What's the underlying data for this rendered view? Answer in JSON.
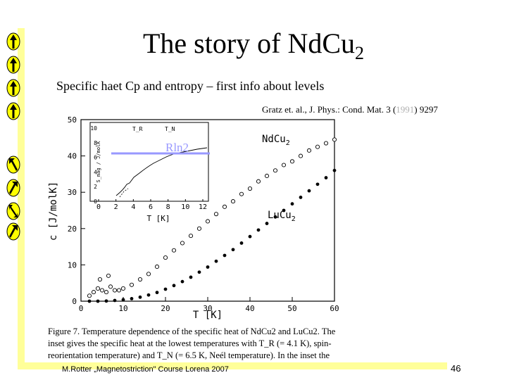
{
  "slide": {
    "title_main": "The story of NdCu",
    "title_sub": "2",
    "subtitle": "Specific haet Cp  and entropy – first info about levels",
    "reference_pre": "Gratz et. al., J. Phys.: Cond. Mat. 3 (",
    "reference_year": "1991",
    "reference_post": ") 9297",
    "footer": "M.Rotter „Magnetostriction\" Course Lorena 2007",
    "page_number": "46",
    "accent_color": "#ffff99",
    "arrow_color": "#ffff00"
  },
  "figure": {
    "y_axis_label": "c [J/molK]",
    "x_axis_label": "T [K]",
    "y_ticks": [
      "0",
      "10",
      "20",
      "30",
      "40",
      "50"
    ],
    "x_ticks": [
      "0",
      "10",
      "20",
      "30",
      "40",
      "50",
      "60"
    ],
    "label_ndcu": "NdCu",
    "label_lucu": "LuCu",
    "label_sub": "2",
    "rln2": "Rln2",
    "inset_x_label": "T [K]",
    "inset_x_ticks": [
      "0",
      "2",
      "4",
      "6",
      "8",
      "10",
      "12"
    ],
    "inset_y_ticks": [
      "0",
      "2",
      "4",
      "6",
      "8",
      "10"
    ],
    "inset_y_label": "S_mag / J/molK",
    "inset_tr": "T_R",
    "inset_tn": "T_N",
    "caption_line1": "Figure 7. Temperature dependence of the specific heat of NdCu2 and LuCu2. The",
    "caption_line2": "inset gives the specific heat at the lowest temperatures with T_R (= 4.1 K), spin-",
    "caption_line3": "reorientation temperature) and T_N (= 6.5 K, Neél temperature). In the inset the"
  },
  "chart_data": {
    "type": "scatter",
    "xlabel": "T [K]",
    "ylabel": "c [J/molK]",
    "xlim": [
      0,
      60
    ],
    "ylim": [
      0,
      50
    ],
    "series": [
      {
        "name": "NdCu2",
        "x": [
          2,
          3,
          4,
          4.5,
          5,
          6,
          6.5,
          7,
          8,
          9,
          10,
          12,
          14,
          16,
          18,
          20,
          22,
          24,
          26,
          28,
          30,
          32,
          34,
          36,
          38,
          40,
          42,
          44,
          46,
          48,
          50,
          52,
          54,
          56,
          58,
          60
        ],
        "y": [
          1.5,
          2.5,
          3.5,
          6,
          3,
          2.5,
          7,
          4,
          3,
          3,
          3.5,
          4.5,
          6,
          7.5,
          9.5,
          12,
          14,
          16,
          18,
          20,
          22,
          24,
          26,
          27.5,
          29.5,
          31,
          33,
          34.5,
          36,
          37.5,
          38.5,
          40,
          41.5,
          42.5,
          43.5,
          44.5
        ]
      },
      {
        "name": "LuCu2",
        "x": [
          2,
          4,
          6,
          8,
          10,
          12,
          14,
          16,
          18,
          20,
          22,
          24,
          26,
          28,
          30,
          32,
          34,
          36,
          38,
          40,
          42,
          44,
          46,
          48,
          50,
          52,
          54,
          56,
          58,
          60
        ],
        "y": [
          0,
          0,
          0.05,
          0.2,
          0.4,
          0.7,
          1.1,
          1.7,
          2.4,
          3.3,
          4.3,
          5.4,
          6.6,
          8,
          9.4,
          11,
          12.6,
          14.2,
          16,
          17.8,
          19.6,
          21.4,
          23.2,
          25,
          26.8,
          28.6,
          30.4,
          32.2,
          34,
          36
        ]
      }
    ]
  }
}
